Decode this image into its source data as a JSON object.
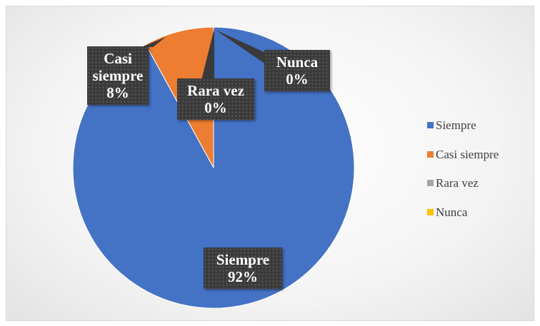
{
  "chart_data": {
    "type": "pie",
    "categories": [
      "Siempre",
      "Casi siempre",
      "Rara vez",
      "Nunca"
    ],
    "values": [
      92,
      8,
      0,
      0
    ],
    "value_labels": [
      "92%",
      "8%",
      "0%",
      "0%"
    ],
    "colors": [
      "#4472c4",
      "#ed7d31",
      "#a5a5a5",
      "#ffc000"
    ],
    "legend": "right"
  }
}
